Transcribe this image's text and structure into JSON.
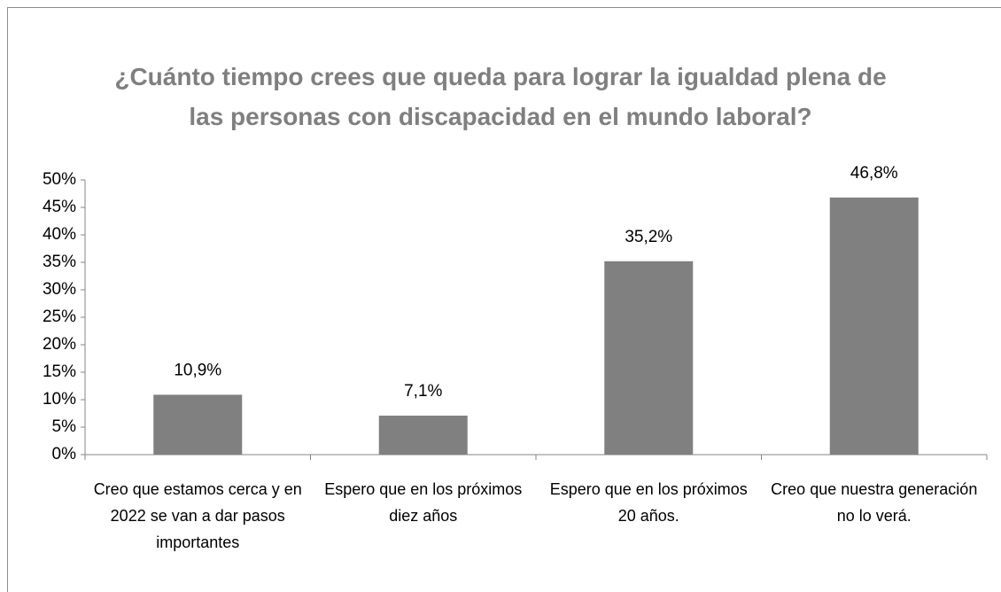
{
  "chart_data": {
    "type": "bar",
    "title": "¿Cuánto tiempo crees que queda para lograr la igualdad plena de las personas con discapacidad en el mundo laboral?",
    "categories": [
      "Creo que estamos cerca y en 2022 se van a dar pasos importantes",
      "Espero que en los próximos diez años",
      "Espero que en los próximos 20 años.",
      "Creo que nuestra generación no lo verá."
    ],
    "values": [
      10.9,
      7.1,
      35.2,
      46.8
    ],
    "value_labels": [
      "10,9%",
      "7,1%",
      "35,2%",
      "46,8%"
    ],
    "color": "#808080",
    "ylim": [
      0,
      50
    ],
    "yticks": [
      {
        "value": 0,
        "label": "0%"
      },
      {
        "value": 5,
        "label": "5%"
      },
      {
        "value": 10,
        "label": "10%"
      },
      {
        "value": 15,
        "label": "15%"
      },
      {
        "value": 20,
        "label": "20%"
      },
      {
        "value": 25,
        "label": "25%"
      },
      {
        "value": 30,
        "label": "30%"
      },
      {
        "value": 35,
        "label": "35%"
      },
      {
        "value": 40,
        "label": "40%"
      },
      {
        "value": 45,
        "label": "45%"
      },
      {
        "value": 50,
        "label": "50%"
      }
    ],
    "grid": false
  }
}
